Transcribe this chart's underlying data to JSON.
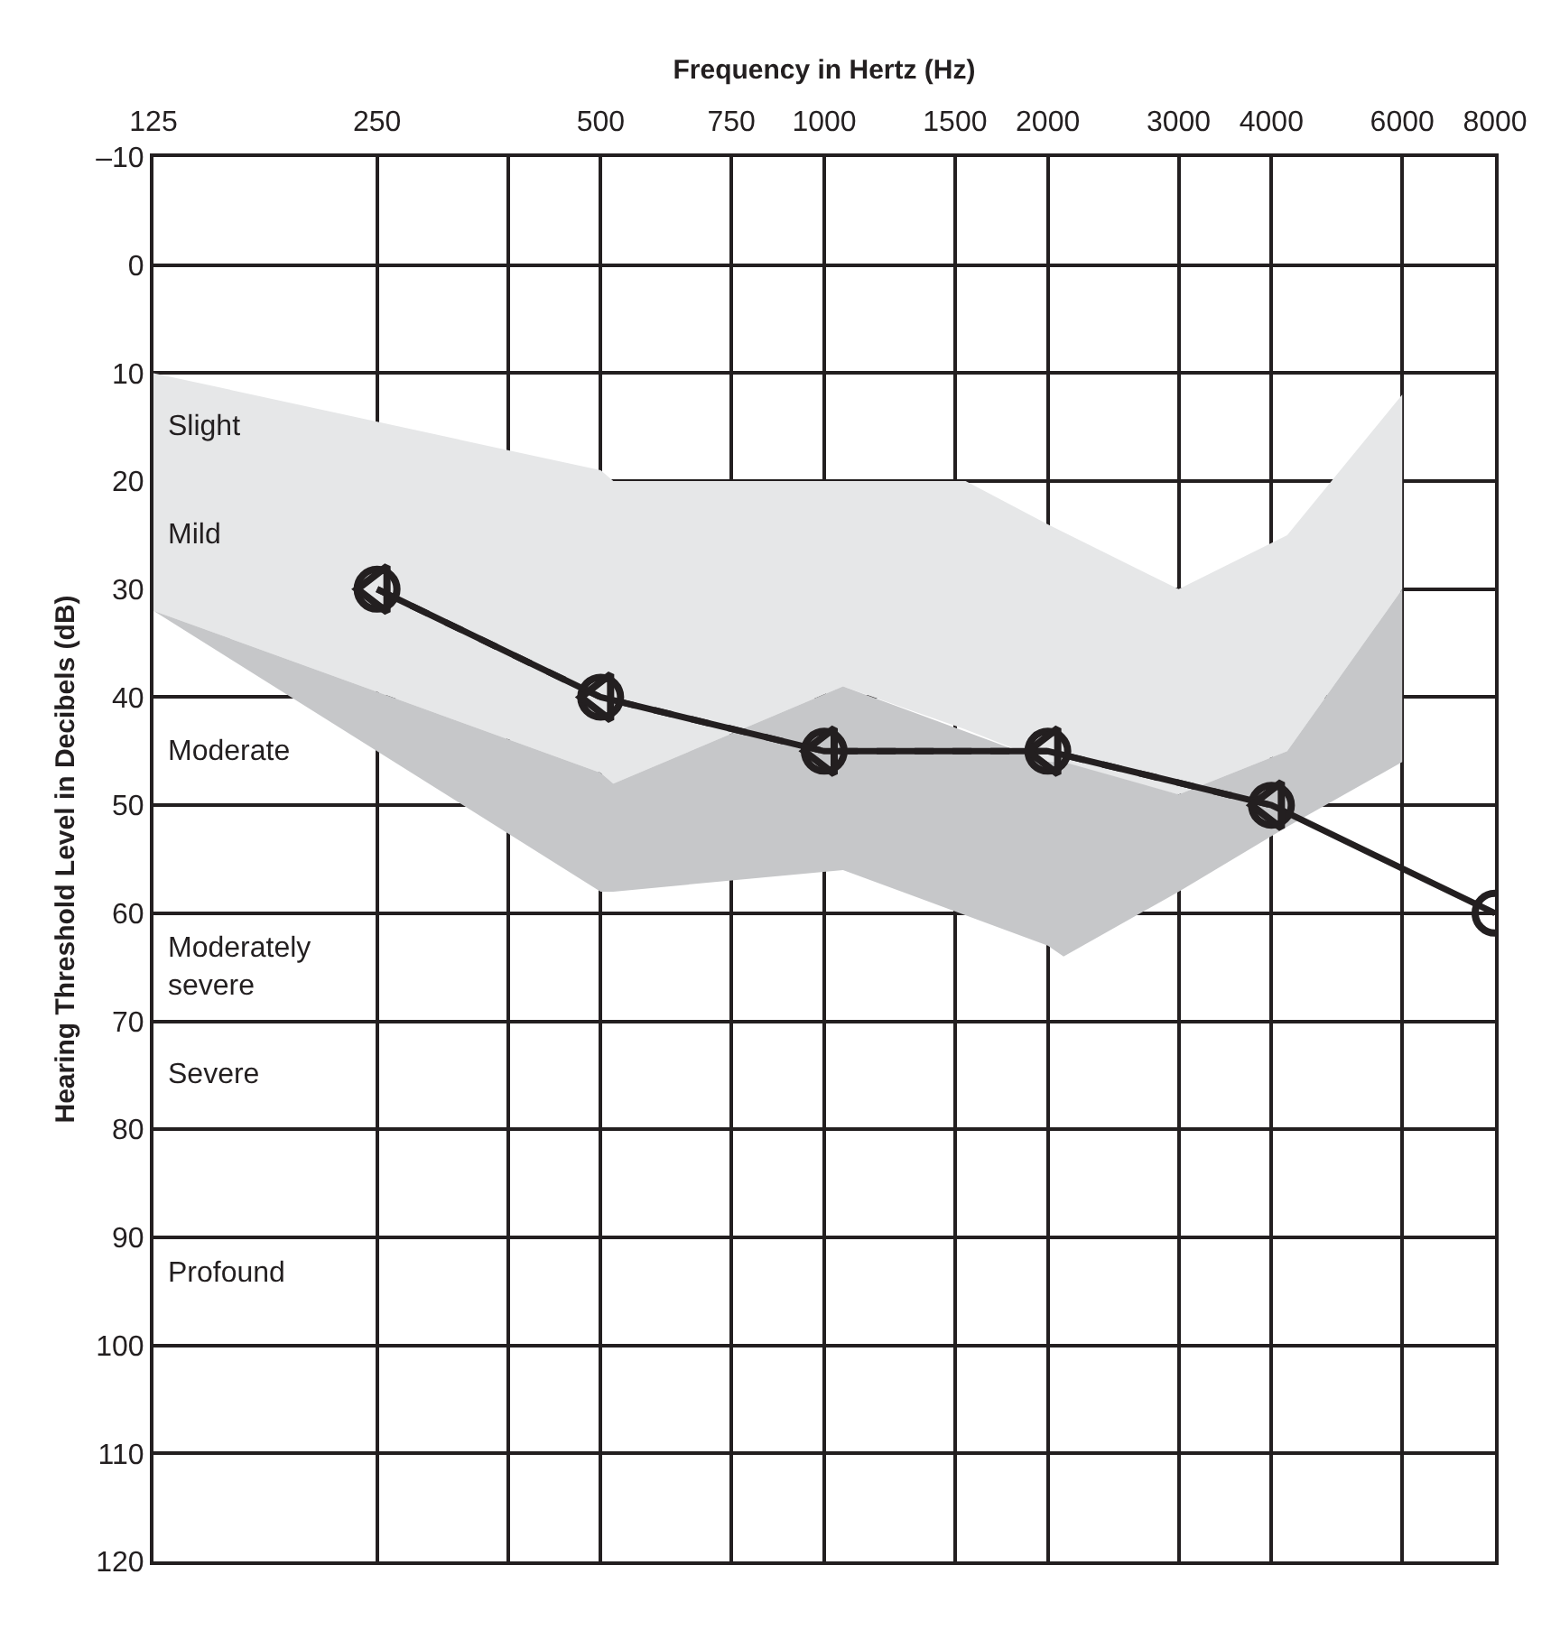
{
  "chart_data": {
    "type": "line",
    "xlabel": "Frequency in Hertz (Hz)",
    "ylabel": "Hearing Threshold Level in Decibels (dB)",
    "log": "x",
    "xlim": [
      125,
      8000
    ],
    "ylim": [
      120,
      -10
    ],
    "xticks": [
      125,
      250,
      {
        "value": 375,
        "label": null
      },
      500,
      750,
      1000,
      1500,
      2000,
      3000,
      4000,
      6000,
      8000
    ],
    "yticks": [
      {
        "value": -10,
        "label": "–10"
      },
      0,
      10,
      20,
      30,
      40,
      50,
      60,
      70,
      80,
      90,
      100,
      110,
      120
    ],
    "grid": true,
    "series": [
      {
        "color": "#e6e7e8",
        "x": [
          125,
          500,
          520,
          1060,
          1550,
          2000,
          3000,
          4200,
          6000
        ],
        "values": [
          null,
          null,
          null,
          null,
          null,
          null,
          null,
          null,
          null
        ],
        "lower": [
          10,
          19,
          20,
          20,
          20,
          24,
          30,
          25,
          12
        ],
        "upper": [
          32,
          47,
          48,
          39,
          43,
          46,
          49,
          45,
          30
        ]
      },
      {
        "color": "#c6c7c9",
        "x": [
          125,
          500,
          520,
          1060,
          2000,
          2100,
          3000,
          4200,
          6000
        ],
        "values": [
          null,
          null,
          null,
          null,
          null,
          null,
          null,
          null,
          null
        ],
        "lower": [
          32,
          47,
          48,
          39,
          46,
          46,
          49,
          45,
          30
        ],
        "upper": [
          32,
          58,
          58,
          56,
          63,
          64,
          58,
          52,
          46
        ]
      },
      {
        "color": "#231f20",
        "x": [
          250,
          500,
          1000,
          2000,
          4000,
          8000
        ],
        "values": [
          30,
          40,
          45,
          45,
          50,
          60
        ],
        "marker": "circle",
        "line_style": "solid"
      },
      {
        "color": "#231f20",
        "x": [
          250,
          500,
          1000,
          2000,
          4000
        ],
        "values": [
          30,
          40,
          45,
          45,
          50
        ],
        "marker": "triangle",
        "line_style": "dashed"
      }
    ],
    "annotations": [
      {
        "text": "Slight",
        "x": 125,
        "y": 15
      },
      {
        "text": "Mild",
        "x": 125,
        "y": 25
      },
      "Moderate",
      "Moderately\nsevere",
      "Severe",
      "Profound"
    ]
  }
}
